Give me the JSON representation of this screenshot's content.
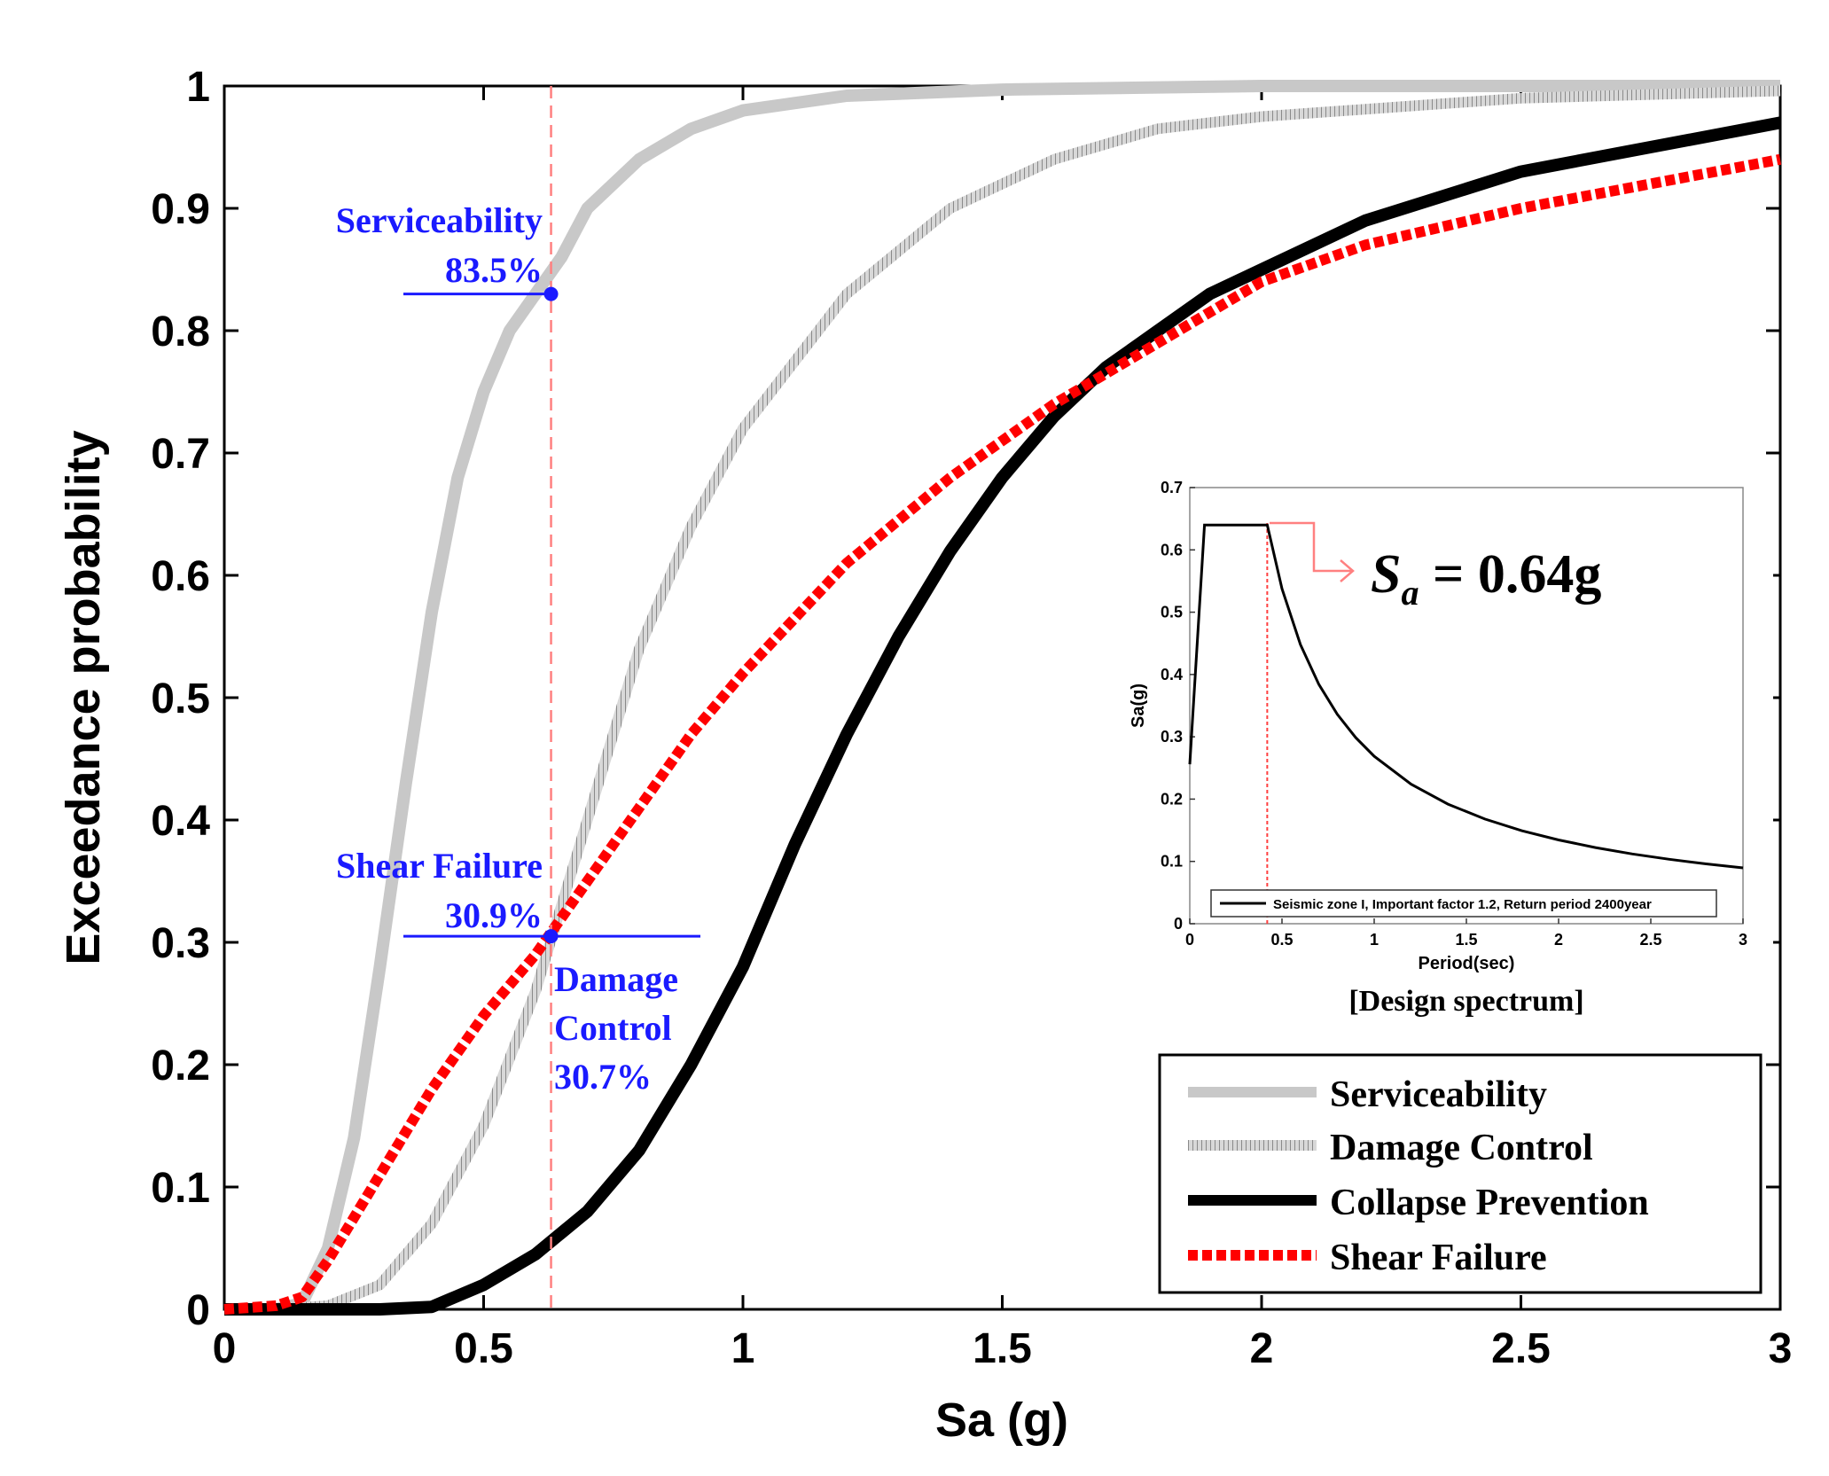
{
  "chart_data": {
    "type": "line",
    "xlabel": "Sa (g)",
    "ylabel": "Exceedance probability",
    "xlim": [
      0,
      3
    ],
    "ylim": [
      0,
      1
    ],
    "x_ticks": [
      0,
      0.5,
      1,
      1.5,
      2,
      2.5,
      3
    ],
    "x_tick_labels": [
      "0",
      "0.5",
      "1",
      "1.5",
      "2",
      "2.5",
      "3"
    ],
    "y_ticks": [
      0,
      0.1,
      0.2,
      0.3,
      0.4,
      0.5,
      0.6,
      0.7,
      0.8,
      0.9,
      1
    ],
    "y_tick_labels": [
      "0",
      "0.1",
      "0.2",
      "0.3",
      "0.4",
      "0.5",
      "0.6",
      "0.7",
      "0.8",
      "0.9",
      "1"
    ],
    "grid": false,
    "legend_position": "bottom-right",
    "series": [
      {
        "name": "Serviceability",
        "color": "#c8c8c8",
        "style": "solid-thick",
        "points": [
          [
            0,
            0
          ],
          [
            0.1,
            0
          ],
          [
            0.15,
            0.005
          ],
          [
            0.2,
            0.05
          ],
          [
            0.25,
            0.14
          ],
          [
            0.3,
            0.28
          ],
          [
            0.35,
            0.43
          ],
          [
            0.4,
            0.57
          ],
          [
            0.45,
            0.68
          ],
          [
            0.5,
            0.75
          ],
          [
            0.55,
            0.8
          ],
          [
            0.6,
            0.83
          ],
          [
            0.65,
            0.86
          ],
          [
            0.7,
            0.9
          ],
          [
            0.8,
            0.94
          ],
          [
            0.9,
            0.965
          ],
          [
            1.0,
            0.98
          ],
          [
            1.2,
            0.992
          ],
          [
            1.5,
            0.997
          ],
          [
            2.0,
            1.0
          ],
          [
            3.0,
            1.0
          ]
        ]
      },
      {
        "name": "Damage Control",
        "color": "#a8a8a8",
        "style": "hatched",
        "points": [
          [
            0,
            0
          ],
          [
            0.1,
            0
          ],
          [
            0.2,
            0.003
          ],
          [
            0.3,
            0.02
          ],
          [
            0.4,
            0.07
          ],
          [
            0.5,
            0.15
          ],
          [
            0.6,
            0.26
          ],
          [
            0.7,
            0.4
          ],
          [
            0.8,
            0.54
          ],
          [
            0.9,
            0.64
          ],
          [
            1.0,
            0.72
          ],
          [
            1.2,
            0.83
          ],
          [
            1.4,
            0.9
          ],
          [
            1.6,
            0.94
          ],
          [
            1.8,
            0.965
          ],
          [
            2.0,
            0.975
          ],
          [
            2.5,
            0.99
          ],
          [
            3.0,
            0.996
          ]
        ]
      },
      {
        "name": "Collapse Prevention",
        "color": "#000000",
        "style": "solid-thick",
        "points": [
          [
            0,
            0
          ],
          [
            0.3,
            0
          ],
          [
            0.4,
            0.002
          ],
          [
            0.5,
            0.02
          ],
          [
            0.6,
            0.045
          ],
          [
            0.7,
            0.08
          ],
          [
            0.8,
            0.13
          ],
          [
            0.9,
            0.2
          ],
          [
            1.0,
            0.28
          ],
          [
            1.1,
            0.38
          ],
          [
            1.2,
            0.47
          ],
          [
            1.3,
            0.55
          ],
          [
            1.4,
            0.62
          ],
          [
            1.5,
            0.68
          ],
          [
            1.6,
            0.73
          ],
          [
            1.7,
            0.77
          ],
          [
            1.8,
            0.8
          ],
          [
            1.9,
            0.83
          ],
          [
            2.0,
            0.85
          ],
          [
            2.2,
            0.89
          ],
          [
            2.5,
            0.93
          ],
          [
            3.0,
            0.97
          ]
        ]
      },
      {
        "name": "Shear Failure",
        "color": "#ff0000",
        "style": "dotted-thick",
        "points": [
          [
            0,
            0
          ],
          [
            0.1,
            0.003
          ],
          [
            0.15,
            0.01
          ],
          [
            0.2,
            0.04
          ],
          [
            0.3,
            0.11
          ],
          [
            0.4,
            0.18
          ],
          [
            0.5,
            0.24
          ],
          [
            0.6,
            0.29
          ],
          [
            0.7,
            0.35
          ],
          [
            0.8,
            0.41
          ],
          [
            0.9,
            0.47
          ],
          [
            1.0,
            0.52
          ],
          [
            1.2,
            0.61
          ],
          [
            1.4,
            0.68
          ],
          [
            1.6,
            0.74
          ],
          [
            1.8,
            0.79
          ],
          [
            2.0,
            0.84
          ],
          [
            2.2,
            0.87
          ],
          [
            2.5,
            0.9
          ],
          [
            3.0,
            0.94
          ]
        ]
      }
    ],
    "reference_line": {
      "x": 0.63,
      "color": "#ff8080"
    },
    "annotations": [
      {
        "id": "serviceability",
        "line1": "Serviceability",
        "line2": "83.5%",
        "x": 0.63,
        "y": 0.83,
        "color": "#1a1aff"
      },
      {
        "id": "shear",
        "line1": "Shear Failure",
        "line2": "30.9%",
        "x": 0.63,
        "y": 0.305,
        "color": "#1a1aff"
      },
      {
        "id": "damage",
        "line1": "Damage",
        "line2": "Control",
        "line3": "30.7%",
        "color": "#1a1aff"
      }
    ],
    "inset": {
      "type": "line",
      "title": "[Design spectrum]",
      "xlabel": "Period(sec)",
      "ylabel": "Sa(g)",
      "xlim": [
        0,
        3
      ],
      "ylim": [
        0,
        0.7
      ],
      "x_ticks": [
        0,
        0.5,
        1,
        1.5,
        2,
        2.5,
        3
      ],
      "x_tick_labels": [
        "0",
        "0.5",
        "1",
        "1.5",
        "2",
        "2.5",
        "3"
      ],
      "y_ticks": [
        0,
        0.1,
        0.2,
        0.3,
        0.4,
        0.5,
        0.6,
        0.7
      ],
      "y_tick_labels": [
        "0",
        "0.1",
        "0.2",
        "0.3",
        "0.4",
        "0.5",
        "0.6",
        "0.7"
      ],
      "legend_label": "Seismic zone I, Important factor 1.2, Return period 2400year",
      "marker_x": 0.42,
      "annotation_prefix": "S",
      "annotation_subscript": "a",
      "annotation_value": " = 0.64g",
      "series_points": [
        [
          0,
          0.256
        ],
        [
          0.08,
          0.64
        ],
        [
          0.42,
          0.64
        ],
        [
          0.5,
          0.5376
        ],
        [
          0.6,
          0.448
        ],
        [
          0.7,
          0.384
        ],
        [
          0.8,
          0.336
        ],
        [
          0.9,
          0.2987
        ],
        [
          1.0,
          0.2688
        ],
        [
          1.2,
          0.224
        ],
        [
          1.4,
          0.192
        ],
        [
          1.6,
          0.168
        ],
        [
          1.8,
          0.1493
        ],
        [
          2.0,
          0.1344
        ],
        [
          2.2,
          0.1222
        ],
        [
          2.4,
          0.112
        ],
        [
          2.6,
          0.1034
        ],
        [
          2.8,
          0.096
        ],
        [
          3.0,
          0.0896
        ]
      ]
    }
  }
}
